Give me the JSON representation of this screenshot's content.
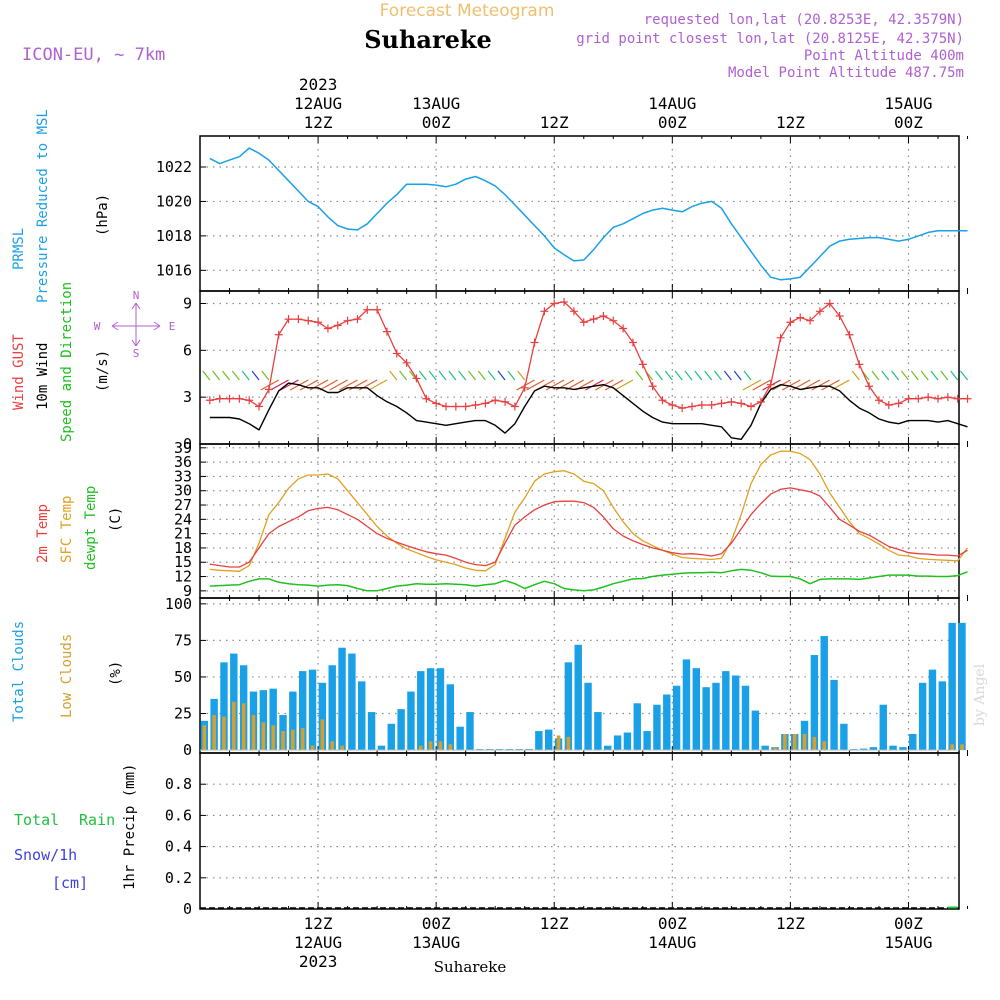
{
  "header": {
    "title": "Forecast Meteogram",
    "location": "Suhareke",
    "model": "ICON-EU, ~ 7km",
    "requested": "requested lon,lat (20.8253E, 42.3579N)",
    "grid_point": "grid point closest lon,lat (20.8125E, 42.375N)",
    "point_altitude": "Point Altitude 400m",
    "model_altitude": "Model Point Altitude 487.75m",
    "footer_location": "Suhareke",
    "credit": "by Angel"
  },
  "colors": {
    "pressure": "#1aa0e6",
    "gust": "#e84040",
    "wind": "#000000",
    "t2m": "#e84040",
    "sfc": "#e0a020",
    "dewpt": "#20c020",
    "total_clouds": "#1aa0e6",
    "low_clouds": "#d4a030",
    "rain": "#20c040",
    "snow": "#4040e0",
    "meta": "#b060d0",
    "title": "#f0c070"
  },
  "time_axis": {
    "top_labels": [
      {
        "h": 12,
        "lines": [
          "2023",
          "12AUG",
          "12Z"
        ]
      },
      {
        "h": 24,
        "lines": [
          "13AUG",
          "00Z"
        ]
      },
      {
        "h": 36,
        "lines": [
          "12Z"
        ]
      },
      {
        "h": 48,
        "lines": [
          "14AUG",
          "00Z"
        ]
      },
      {
        "h": 60,
        "lines": [
          "12Z"
        ]
      },
      {
        "h": 72,
        "lines": [
          "15AUG",
          "00Z"
        ]
      }
    ],
    "bottom_labels": [
      {
        "h": 12,
        "lines": [
          "12Z",
          "12AUG",
          "2023"
        ]
      },
      {
        "h": 24,
        "lines": [
          "00Z",
          "13AUG"
        ]
      },
      {
        "h": 36,
        "lines": [
          "12Z"
        ]
      },
      {
        "h": 48,
        "lines": [
          "00Z",
          "14AUG"
        ]
      },
      {
        "h": 60,
        "lines": [
          "12Z"
        ]
      },
      {
        "h": 72,
        "lines": [
          "00Z",
          "15AUG"
        ]
      }
    ]
  },
  "panels": {
    "pressure": {
      "labels": [
        "PRMSL",
        "Pressure Reduced to MSL"
      ],
      "unit": "(hPa)"
    },
    "wind": {
      "labels": [
        "Wind GUST",
        "10m Wind",
        "Speed and Direction"
      ],
      "unit": "(m/s)",
      "compass": [
        "N",
        "W",
        "E",
        "S"
      ]
    },
    "temp": {
      "labels": [
        "2m Temp",
        "SFC Temp",
        "dewpt Temp"
      ],
      "unit": "(C)"
    },
    "clouds": {
      "labels": [
        "Total Clouds",
        "Low Clouds"
      ],
      "unit": "(%)"
    },
    "precip": {
      "labels": [
        "Total",
        "Rain",
        "Snow/1h",
        "[cm]"
      ],
      "unit": "1hr Precip (mm)"
    }
  },
  "chart_data": [
    {
      "type": "line",
      "series_key": "pressure",
      "ylabel": "(hPa)",
      "ylim": [
        1014.8,
        1023.8
      ],
      "yticks": [
        1016,
        1018,
        1020,
        1022
      ],
      "x": [
        1,
        2,
        3,
        4,
        5,
        6,
        7,
        8,
        9,
        10,
        11,
        12,
        13,
        14,
        15,
        16,
        17,
        18,
        19,
        20,
        21,
        22,
        23,
        24,
        25,
        26,
        27,
        28,
        29,
        30,
        31,
        32,
        33,
        34,
        35,
        36,
        37,
        38,
        39,
        40,
        41,
        42,
        43,
        44,
        45,
        46,
        47,
        48,
        49,
        50,
        51,
        52,
        53,
        54,
        55,
        56,
        57,
        58,
        59,
        60,
        61,
        62,
        63,
        64,
        65,
        66,
        67,
        68,
        69,
        70,
        71,
        72,
        73,
        74,
        75,
        76,
        77,
        78
      ],
      "values": [
        1022.5,
        1022.2,
        1022.4,
        1022.6,
        1023.1,
        1022.8,
        1022.4,
        1021.8,
        1021.2,
        1020.6,
        1020.0,
        1019.7,
        1019.1,
        1018.6,
        1018.4,
        1018.35,
        1018.7,
        1019.3,
        1019.9,
        1020.4,
        1021.0,
        1021.0,
        1021.0,
        1020.95,
        1020.85,
        1021.0,
        1021.3,
        1021.45,
        1021.2,
        1020.9,
        1020.4,
        1019.8,
        1019.2,
        1018.6,
        1018.0,
        1017.3,
        1016.9,
        1016.55,
        1016.6,
        1017.2,
        1017.9,
        1018.5,
        1018.7,
        1019.0,
        1019.3,
        1019.5,
        1019.6,
        1019.5,
        1019.4,
        1019.7,
        1019.9,
        1020.0,
        1019.6,
        1018.7,
        1017.9,
        1017.1,
        1016.3,
        1015.6,
        1015.45,
        1015.5,
        1015.6,
        1016.2,
        1016.8,
        1017.4,
        1017.7,
        1017.8,
        1017.85,
        1017.9,
        1017.9,
        1017.8,
        1017.7,
        1017.8,
        1018.0,
        1018.2,
        1018.3,
        1018.3,
        1018.3,
        1018.3
      ]
    },
    {
      "type": "line",
      "series_key": "wind",
      "ylabel": "(m/s)",
      "ylim": [
        0,
        9.8
      ],
      "yticks": [
        0,
        3,
        6,
        9
      ],
      "x": [
        1,
        2,
        3,
        4,
        5,
        6,
        7,
        8,
        9,
        10,
        11,
        12,
        13,
        14,
        15,
        16,
        17,
        18,
        19,
        20,
        21,
        22,
        23,
        24,
        25,
        26,
        27,
        28,
        29,
        30,
        31,
        32,
        33,
        34,
        35,
        36,
        37,
        38,
        39,
        40,
        41,
        42,
        43,
        44,
        45,
        46,
        47,
        48,
        49,
        50,
        51,
        52,
        53,
        54,
        55,
        56,
        57,
        58,
        59,
        60,
        61,
        62,
        63,
        64,
        65,
        66,
        67,
        68,
        69,
        70,
        71,
        72,
        73,
        74,
        75,
        76,
        77,
        78
      ],
      "series": [
        {
          "name": "Wind GUST",
          "values": [
            2.8,
            2.9,
            2.9,
            2.9,
            2.8,
            2.4,
            3.5,
            7.0,
            8.0,
            8.0,
            7.9,
            7.8,
            7.4,
            7.6,
            7.9,
            8.0,
            8.6,
            8.6,
            7.2,
            5.8,
            5.2,
            4.2,
            2.9,
            2.6,
            2.4,
            2.4,
            2.4,
            2.5,
            2.6,
            2.8,
            2.7,
            2.4,
            3.6,
            6.5,
            8.5,
            9.0,
            9.1,
            8.5,
            7.8,
            8.0,
            8.2,
            7.9,
            7.4,
            6.5,
            5.1,
            3.7,
            2.8,
            2.5,
            2.3,
            2.4,
            2.5,
            2.5,
            2.6,
            2.7,
            2.6,
            2.4,
            2.7,
            3.8,
            6.8,
            7.8,
            8.1,
            7.9,
            8.5,
            9.0,
            8.2,
            7.0,
            5.1,
            3.7,
            2.8,
            2.5,
            2.6,
            2.9,
            2.9,
            3.0,
            2.9,
            3.0,
            2.9,
            2.9
          ]
        },
        {
          "name": "10m Wind",
          "values": [
            1.7,
            1.7,
            1.7,
            1.6,
            1.3,
            0.9,
            2.2,
            3.4,
            3.9,
            3.8,
            3.6,
            3.6,
            3.3,
            3.3,
            3.6,
            3.6,
            3.6,
            3.1,
            2.7,
            2.4,
            2.0,
            1.5,
            1.4,
            1.3,
            1.2,
            1.3,
            1.4,
            1.5,
            1.5,
            1.2,
            0.7,
            1.3,
            2.4,
            3.4,
            3.7,
            3.6,
            3.6,
            3.5,
            3.6,
            3.7,
            3.8,
            3.6,
            3.1,
            2.6,
            2.1,
            1.7,
            1.4,
            1.3,
            1.3,
            1.3,
            1.3,
            1.2,
            1.1,
            0.4,
            0.3,
            1.2,
            2.6,
            3.5,
            3.8,
            3.7,
            3.5,
            3.6,
            3.7,
            3.7,
            3.4,
            2.8,
            2.3,
            2.0,
            1.6,
            1.4,
            1.3,
            1.5,
            1.5,
            1.5,
            1.4,
            1.5,
            1.3,
            1.1
          ]
        }
      ]
    },
    {
      "type": "line",
      "series_key": "temp",
      "ylabel": "(C)",
      "ylim": [
        7.5,
        39.8
      ],
      "yticks": [
        9,
        12,
        15,
        18,
        21,
        24,
        27,
        30,
        33,
        36,
        39
      ],
      "x": [
        1,
        2,
        3,
        4,
        5,
        6,
        7,
        8,
        9,
        10,
        11,
        12,
        13,
        14,
        15,
        16,
        17,
        18,
        19,
        20,
        21,
        22,
        23,
        24,
        25,
        26,
        27,
        28,
        29,
        30,
        31,
        32,
        33,
        34,
        35,
        36,
        37,
        38,
        39,
        40,
        41,
        42,
        43,
        44,
        45,
        46,
        47,
        48,
        49,
        50,
        51,
        52,
        53,
        54,
        55,
        56,
        57,
        58,
        59,
        60,
        61,
        62,
        63,
        64,
        65,
        66,
        67,
        68,
        69,
        70,
        71,
        72,
        73,
        74,
        75,
        76,
        77,
        78
      ],
      "series": [
        {
          "name": "2m Temp",
          "values": [
            14.6,
            14.3,
            14.0,
            14.0,
            15.0,
            18.0,
            21.0,
            22.5,
            23.5,
            24.5,
            25.8,
            26.3,
            26.5,
            26.0,
            25.0,
            24.0,
            22.5,
            21.0,
            20.0,
            19.2,
            18.5,
            17.8,
            17.2,
            16.8,
            16.5,
            15.8,
            15.0,
            14.5,
            14.3,
            15.0,
            19.0,
            22.8,
            24.5,
            26.0,
            27.0,
            27.7,
            27.8,
            27.8,
            27.5,
            26.5,
            24.5,
            22.0,
            20.5,
            19.5,
            18.7,
            18.0,
            17.5,
            17.0,
            16.7,
            16.8,
            16.6,
            16.3,
            16.8,
            19.0,
            22.0,
            25.0,
            27.3,
            29.3,
            30.3,
            30.6,
            30.2,
            29.8,
            28.9,
            26.5,
            24.0,
            22.8,
            21.5,
            20.7,
            19.5,
            18.3,
            17.7,
            17.0,
            16.8,
            16.7,
            16.5,
            16.5,
            16.3,
            17.5
          ]
        },
        {
          "name": "SFC Temp",
          "values": [
            13.5,
            13.3,
            13.2,
            13.1,
            14.3,
            19.0,
            25.0,
            27.5,
            30.5,
            32.5,
            33.3,
            33.3,
            33.5,
            32.5,
            30.0,
            27.5,
            25.0,
            22.5,
            20.5,
            19.0,
            17.8,
            17.0,
            16.2,
            15.5,
            15.0,
            14.5,
            13.8,
            13.3,
            13.2,
            14.5,
            20.0,
            25.5,
            28.5,
            32.0,
            33.5,
            34.0,
            34.2,
            33.5,
            32.0,
            31.5,
            30.0,
            26.5,
            23.5,
            21.0,
            19.5,
            18.5,
            17.5,
            16.7,
            16.0,
            15.8,
            15.7,
            15.6,
            15.8,
            19.5,
            25.0,
            31.5,
            35.5,
            37.5,
            38.3,
            38.3,
            37.8,
            36.5,
            33.5,
            29.5,
            26.5,
            23.5,
            21.0,
            20.0,
            18.8,
            17.5,
            16.5,
            16.3,
            15.8,
            15.6,
            15.5,
            15.4,
            15.3,
            18.0
          ]
        },
        {
          "name": "dewpt Temp",
          "values": [
            10.0,
            10.1,
            10.2,
            10.3,
            11.0,
            11.5,
            11.5,
            10.8,
            10.5,
            10.3,
            10.2,
            10.0,
            10.2,
            10.3,
            10.1,
            9.5,
            9.0,
            9.0,
            9.5,
            10.0,
            10.2,
            10.5,
            10.4,
            10.4,
            10.5,
            10.4,
            10.3,
            10.0,
            10.3,
            10.5,
            11.2,
            10.5,
            9.5,
            10.3,
            11.0,
            10.5,
            9.5,
            9.2,
            9.0,
            9.2,
            9.8,
            10.5,
            11.0,
            11.5,
            11.6,
            12.0,
            12.3,
            12.5,
            12.7,
            12.8,
            12.8,
            12.9,
            12.8,
            13.2,
            13.5,
            13.3,
            12.8,
            12.1,
            12.0,
            12.0,
            11.5,
            10.5,
            11.4,
            11.5,
            11.5,
            11.5,
            11.4,
            11.7,
            12.0,
            12.3,
            12.3,
            12.3,
            12.1,
            12.1,
            12.0,
            12.0,
            12.2,
            13.0
          ]
        }
      ]
    },
    {
      "type": "bar",
      "series_key": "clouds",
      "ylabel": "(%)",
      "ylim": [
        -2,
        104
      ],
      "yticks": [
        0,
        25,
        50,
        75,
        100
      ],
      "x": [
        0,
        1,
        2,
        3,
        4,
        5,
        6,
        7,
        8,
        9,
        10,
        11,
        12,
        13,
        14,
        15,
        16,
        17,
        18,
        19,
        20,
        21,
        22,
        23,
        24,
        25,
        26,
        27,
        28,
        29,
        30,
        31,
        32,
        33,
        34,
        35,
        36,
        37,
        38,
        39,
        40,
        41,
        42,
        43,
        44,
        45,
        46,
        47,
        48,
        49,
        50,
        51,
        52,
        53,
        54,
        55,
        56,
        57,
        58,
        59,
        60,
        61,
        62,
        63,
        64,
        65,
        66,
        67,
        68,
        69,
        70,
        71,
        72,
        73,
        74,
        75,
        76,
        77
      ],
      "series": [
        {
          "name": "Total Clouds",
          "values": [
            20,
            35,
            60,
            66,
            58,
            40,
            41,
            42,
            24,
            40,
            54,
            55,
            46,
            58,
            70,
            66,
            47,
            26,
            3,
            18,
            28,
            40,
            54,
            56,
            56,
            45,
            16,
            26,
            0,
            0,
            0,
            0,
            0,
            0,
            13,
            14,
            8,
            60,
            72,
            46,
            26,
            3,
            10,
            12,
            32,
            13,
            31,
            38,
            44,
            62,
            56,
            43,
            46,
            54,
            51,
            44,
            27,
            3,
            2,
            11,
            11,
            20,
            65,
            78,
            48,
            18,
            0,
            1,
            2,
            31,
            3,
            2,
            11,
            46,
            55,
            47,
            87,
            87
          ]
        },
        {
          "name": "Low Clouds",
          "values": [
            17,
            24,
            23,
            33,
            32,
            24,
            19,
            17,
            13,
            14,
            15,
            3,
            21,
            6,
            3,
            0,
            0,
            0,
            0,
            0,
            0,
            0,
            3,
            6,
            6,
            4,
            0,
            0,
            0,
            0,
            0,
            0,
            0,
            0,
            0,
            0,
            10,
            9,
            0,
            0,
            0,
            0,
            0,
            0,
            0,
            0,
            0,
            0,
            0,
            0,
            0,
            0,
            0,
            0,
            0,
            0,
            0,
            0,
            2,
            11,
            11,
            11,
            9,
            6,
            0,
            0,
            0,
            0,
            0,
            0,
            0,
            0,
            0,
            0,
            0,
            0,
            4,
            4
          ]
        }
      ]
    },
    {
      "type": "line",
      "series_key": "precip",
      "ylabel": "1hr Precip (mm)",
      "ylim": [
        0,
        1.0
      ],
      "yticks": [
        0,
        0.2,
        0.4,
        0.6,
        0.8
      ],
      "ytick_labels": [
        "0",
        "0.2",
        "0.4",
        "0.6",
        "0.8"
      ],
      "x": [
        0,
        78
      ],
      "values": [
        0,
        0
      ]
    }
  ]
}
